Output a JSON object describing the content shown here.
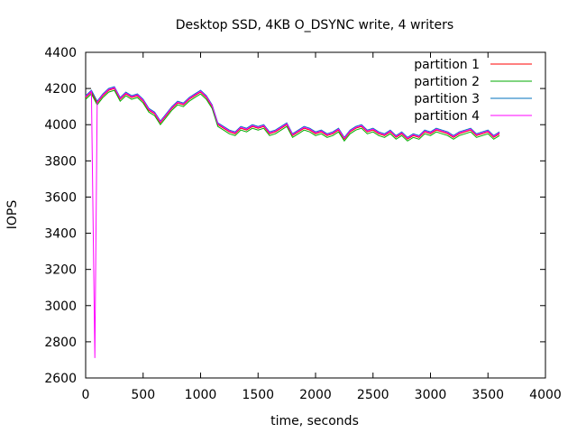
{
  "chart_data": {
    "type": "line",
    "title": "Desktop SSD, 4KB O_DSYNC write, 4 writers",
    "xlabel": "time, seconds",
    "ylabel": "IOPS",
    "xlim": [
      0,
      4000
    ],
    "ylim": [
      2600,
      4400
    ],
    "xticks": [
      0,
      500,
      1000,
      1500,
      2000,
      2500,
      3000,
      3500,
      4000
    ],
    "yticks": [
      2600,
      2800,
      3000,
      3200,
      3400,
      3600,
      3800,
      4000,
      4200,
      4400
    ],
    "grid": false,
    "legend_position": "top-right",
    "series": [
      {
        "name": "partition 1",
        "color": "#ff0000",
        "points": [
          [
            0,
            4150
          ],
          [
            50,
            4180
          ],
          [
            100,
            4120
          ],
          [
            150,
            4160
          ],
          [
            200,
            4190
          ],
          [
            250,
            4200
          ],
          [
            300,
            4140
          ],
          [
            350,
            4170
          ],
          [
            400,
            4150
          ],
          [
            450,
            4160
          ],
          [
            500,
            4130
          ],
          [
            550,
            4080
          ],
          [
            600,
            4060
          ],
          [
            650,
            4010
          ],
          [
            700,
            4050
          ],
          [
            750,
            4090
          ],
          [
            800,
            4120
          ],
          [
            850,
            4110
          ],
          [
            900,
            4140
          ],
          [
            950,
            4160
          ],
          [
            1000,
            4180
          ],
          [
            1050,
            4150
          ],
          [
            1100,
            4100
          ],
          [
            1150,
            4000
          ],
          [
            1200,
            3980
          ],
          [
            1250,
            3960
          ],
          [
            1300,
            3950
          ],
          [
            1350,
            3980
          ],
          [
            1400,
            3970
          ],
          [
            1450,
            3990
          ],
          [
            1500,
            3980
          ],
          [
            1550,
            3990
          ],
          [
            1600,
            3950
          ],
          [
            1650,
            3960
          ],
          [
            1700,
            3980
          ],
          [
            1750,
            4000
          ],
          [
            1800,
            3940
          ],
          [
            1850,
            3960
          ],
          [
            1900,
            3980
          ],
          [
            1950,
            3970
          ],
          [
            2000,
            3950
          ],
          [
            2050,
            3960
          ],
          [
            2100,
            3940
          ],
          [
            2150,
            3950
          ],
          [
            2200,
            3970
          ],
          [
            2250,
            3920
          ],
          [
            2300,
            3960
          ],
          [
            2350,
            3980
          ],
          [
            2400,
            3990
          ],
          [
            2450,
            3960
          ],
          [
            2500,
            3970
          ],
          [
            2550,
            3950
          ],
          [
            2600,
            3940
          ],
          [
            2650,
            3960
          ],
          [
            2700,
            3930
          ],
          [
            2750,
            3950
          ],
          [
            2800,
            3920
          ],
          [
            2850,
            3940
          ],
          [
            2900,
            3930
          ],
          [
            2950,
            3960
          ],
          [
            3000,
            3950
          ],
          [
            3050,
            3970
          ],
          [
            3100,
            3960
          ],
          [
            3150,
            3950
          ],
          [
            3200,
            3930
          ],
          [
            3250,
            3950
          ],
          [
            3300,
            3960
          ],
          [
            3350,
            3970
          ],
          [
            3400,
            3940
          ],
          [
            3450,
            3950
          ],
          [
            3500,
            3960
          ],
          [
            3550,
            3930
          ],
          [
            3600,
            3950
          ]
        ]
      },
      {
        "name": "partition 2",
        "color": "#00aa00",
        "points": [
          [
            0,
            4140
          ],
          [
            50,
            4170
          ],
          [
            100,
            4110
          ],
          [
            150,
            4150
          ],
          [
            200,
            4180
          ],
          [
            250,
            4190
          ],
          [
            300,
            4130
          ],
          [
            350,
            4160
          ],
          [
            400,
            4140
          ],
          [
            450,
            4150
          ],
          [
            500,
            4120
          ],
          [
            550,
            4070
          ],
          [
            600,
            4050
          ],
          [
            650,
            4000
          ],
          [
            700,
            4040
          ],
          [
            750,
            4080
          ],
          [
            800,
            4110
          ],
          [
            850,
            4100
          ],
          [
            900,
            4130
          ],
          [
            950,
            4150
          ],
          [
            1000,
            4170
          ],
          [
            1050,
            4140
          ],
          [
            1100,
            4090
          ],
          [
            1150,
            3990
          ],
          [
            1200,
            3970
          ],
          [
            1250,
            3950
          ],
          [
            1300,
            3940
          ],
          [
            1350,
            3970
          ],
          [
            1400,
            3960
          ],
          [
            1450,
            3980
          ],
          [
            1500,
            3970
          ],
          [
            1550,
            3980
          ],
          [
            1600,
            3940
          ],
          [
            1650,
            3950
          ],
          [
            1700,
            3970
          ],
          [
            1750,
            3990
          ],
          [
            1800,
            3930
          ],
          [
            1850,
            3950
          ],
          [
            1900,
            3970
          ],
          [
            1950,
            3960
          ],
          [
            2000,
            3940
          ],
          [
            2050,
            3950
          ],
          [
            2100,
            3930
          ],
          [
            2150,
            3940
          ],
          [
            2200,
            3960
          ],
          [
            2250,
            3910
          ],
          [
            2300,
            3950
          ],
          [
            2350,
            3970
          ],
          [
            2400,
            3980
          ],
          [
            2450,
            3950
          ],
          [
            2500,
            3960
          ],
          [
            2550,
            3940
          ],
          [
            2600,
            3930
          ],
          [
            2650,
            3950
          ],
          [
            2700,
            3920
          ],
          [
            2750,
            3940
          ],
          [
            2800,
            3910
          ],
          [
            2850,
            3930
          ],
          [
            2900,
            3920
          ],
          [
            2950,
            3950
          ],
          [
            3000,
            3940
          ],
          [
            3050,
            3960
          ],
          [
            3100,
            3950
          ],
          [
            3150,
            3940
          ],
          [
            3200,
            3920
          ],
          [
            3250,
            3940
          ],
          [
            3300,
            3950
          ],
          [
            3350,
            3960
          ],
          [
            3400,
            3930
          ],
          [
            3450,
            3940
          ],
          [
            3500,
            3950
          ],
          [
            3550,
            3920
          ],
          [
            3600,
            3940
          ]
        ]
      },
      {
        "name": "partition 3",
        "color": "#0072bd",
        "points": [
          [
            0,
            4160
          ],
          [
            50,
            4190
          ],
          [
            100,
            4130
          ],
          [
            150,
            4170
          ],
          [
            200,
            4200
          ],
          [
            250,
            4210
          ],
          [
            300,
            4150
          ],
          [
            350,
            4180
          ],
          [
            400,
            4160
          ],
          [
            450,
            4170
          ],
          [
            500,
            4140
          ],
          [
            550,
            4090
          ],
          [
            600,
            4070
          ],
          [
            650,
            4020
          ],
          [
            700,
            4060
          ],
          [
            750,
            4100
          ],
          [
            800,
            4130
          ],
          [
            850,
            4120
          ],
          [
            900,
            4150
          ],
          [
            950,
            4170
          ],
          [
            1000,
            4190
          ],
          [
            1050,
            4160
          ],
          [
            1100,
            4110
          ],
          [
            1150,
            4010
          ],
          [
            1200,
            3990
          ],
          [
            1250,
            3970
          ],
          [
            1300,
            3960
          ],
          [
            1350,
            3990
          ],
          [
            1400,
            3980
          ],
          [
            1450,
            4000
          ],
          [
            1500,
            3990
          ],
          [
            1550,
            4000
          ],
          [
            1600,
            3960
          ],
          [
            1650,
            3970
          ],
          [
            1700,
            3990
          ],
          [
            1750,
            4010
          ],
          [
            1800,
            3950
          ],
          [
            1850,
            3970
          ],
          [
            1900,
            3990
          ],
          [
            1950,
            3980
          ],
          [
            2000,
            3960
          ],
          [
            2050,
            3970
          ],
          [
            2100,
            3950
          ],
          [
            2150,
            3960
          ],
          [
            2200,
            3980
          ],
          [
            2250,
            3930
          ],
          [
            2300,
            3970
          ],
          [
            2350,
            3990
          ],
          [
            2400,
            4000
          ],
          [
            2450,
            3970
          ],
          [
            2500,
            3980
          ],
          [
            2550,
            3960
          ],
          [
            2600,
            3950
          ],
          [
            2650,
            3970
          ],
          [
            2700,
            3940
          ],
          [
            2750,
            3960
          ],
          [
            2800,
            3930
          ],
          [
            2850,
            3950
          ],
          [
            2900,
            3940
          ],
          [
            2950,
            3970
          ],
          [
            3000,
            3960
          ],
          [
            3050,
            3980
          ],
          [
            3100,
            3970
          ],
          [
            3150,
            3960
          ],
          [
            3200,
            3940
          ],
          [
            3250,
            3960
          ],
          [
            3300,
            3970
          ],
          [
            3350,
            3980
          ],
          [
            3400,
            3950
          ],
          [
            3450,
            3960
          ],
          [
            3500,
            3970
          ],
          [
            3550,
            3940
          ],
          [
            3600,
            3960
          ]
        ]
      },
      {
        "name": "partition 4",
        "color": "#ff00ff",
        "points": [
          [
            0,
            4155
          ],
          [
            50,
            4185
          ],
          [
            80,
            2710
          ],
          [
            100,
            4125
          ],
          [
            150,
            4165
          ],
          [
            200,
            4195
          ],
          [
            250,
            4205
          ],
          [
            300,
            4145
          ],
          [
            350,
            4175
          ],
          [
            400,
            4155
          ],
          [
            450,
            4165
          ],
          [
            500,
            4135
          ],
          [
            550,
            4085
          ],
          [
            600,
            4065
          ],
          [
            650,
            4015
          ],
          [
            700,
            4055
          ],
          [
            750,
            4095
          ],
          [
            800,
            4125
          ],
          [
            850,
            4115
          ],
          [
            900,
            4145
          ],
          [
            950,
            4165
          ],
          [
            1000,
            4185
          ],
          [
            1050,
            4155
          ],
          [
            1100,
            4105
          ],
          [
            1150,
            4005
          ],
          [
            1200,
            3985
          ],
          [
            1250,
            3965
          ],
          [
            1300,
            3955
          ],
          [
            1350,
            3985
          ],
          [
            1400,
            3975
          ],
          [
            1450,
            3995
          ],
          [
            1500,
            3985
          ],
          [
            1550,
            3995
          ],
          [
            1600,
            3955
          ],
          [
            1650,
            3965
          ],
          [
            1700,
            3985
          ],
          [
            1750,
            4005
          ],
          [
            1800,
            3945
          ],
          [
            1850,
            3965
          ],
          [
            1900,
            3985
          ],
          [
            1950,
            3975
          ],
          [
            2000,
            3955
          ],
          [
            2050,
            3965
          ],
          [
            2100,
            3945
          ],
          [
            2150,
            3955
          ],
          [
            2200,
            3975
          ],
          [
            2250,
            3925
          ],
          [
            2300,
            3965
          ],
          [
            2350,
            3985
          ],
          [
            2400,
            3995
          ],
          [
            2450,
            3965
          ],
          [
            2500,
            3975
          ],
          [
            2550,
            3955
          ],
          [
            2600,
            3945
          ],
          [
            2650,
            3965
          ],
          [
            2700,
            3935
          ],
          [
            2750,
            3955
          ],
          [
            2800,
            3925
          ],
          [
            2850,
            3945
          ],
          [
            2900,
            3935
          ],
          [
            2950,
            3965
          ],
          [
            3000,
            3955
          ],
          [
            3050,
            3975
          ],
          [
            3100,
            3965
          ],
          [
            3150,
            3955
          ],
          [
            3200,
            3935
          ],
          [
            3250,
            3955
          ],
          [
            3300,
            3965
          ],
          [
            3350,
            3975
          ],
          [
            3400,
            3945
          ],
          [
            3450,
            3955
          ],
          [
            3500,
            3965
          ],
          [
            3550,
            3935
          ],
          [
            3600,
            3955
          ]
        ]
      }
    ]
  }
}
